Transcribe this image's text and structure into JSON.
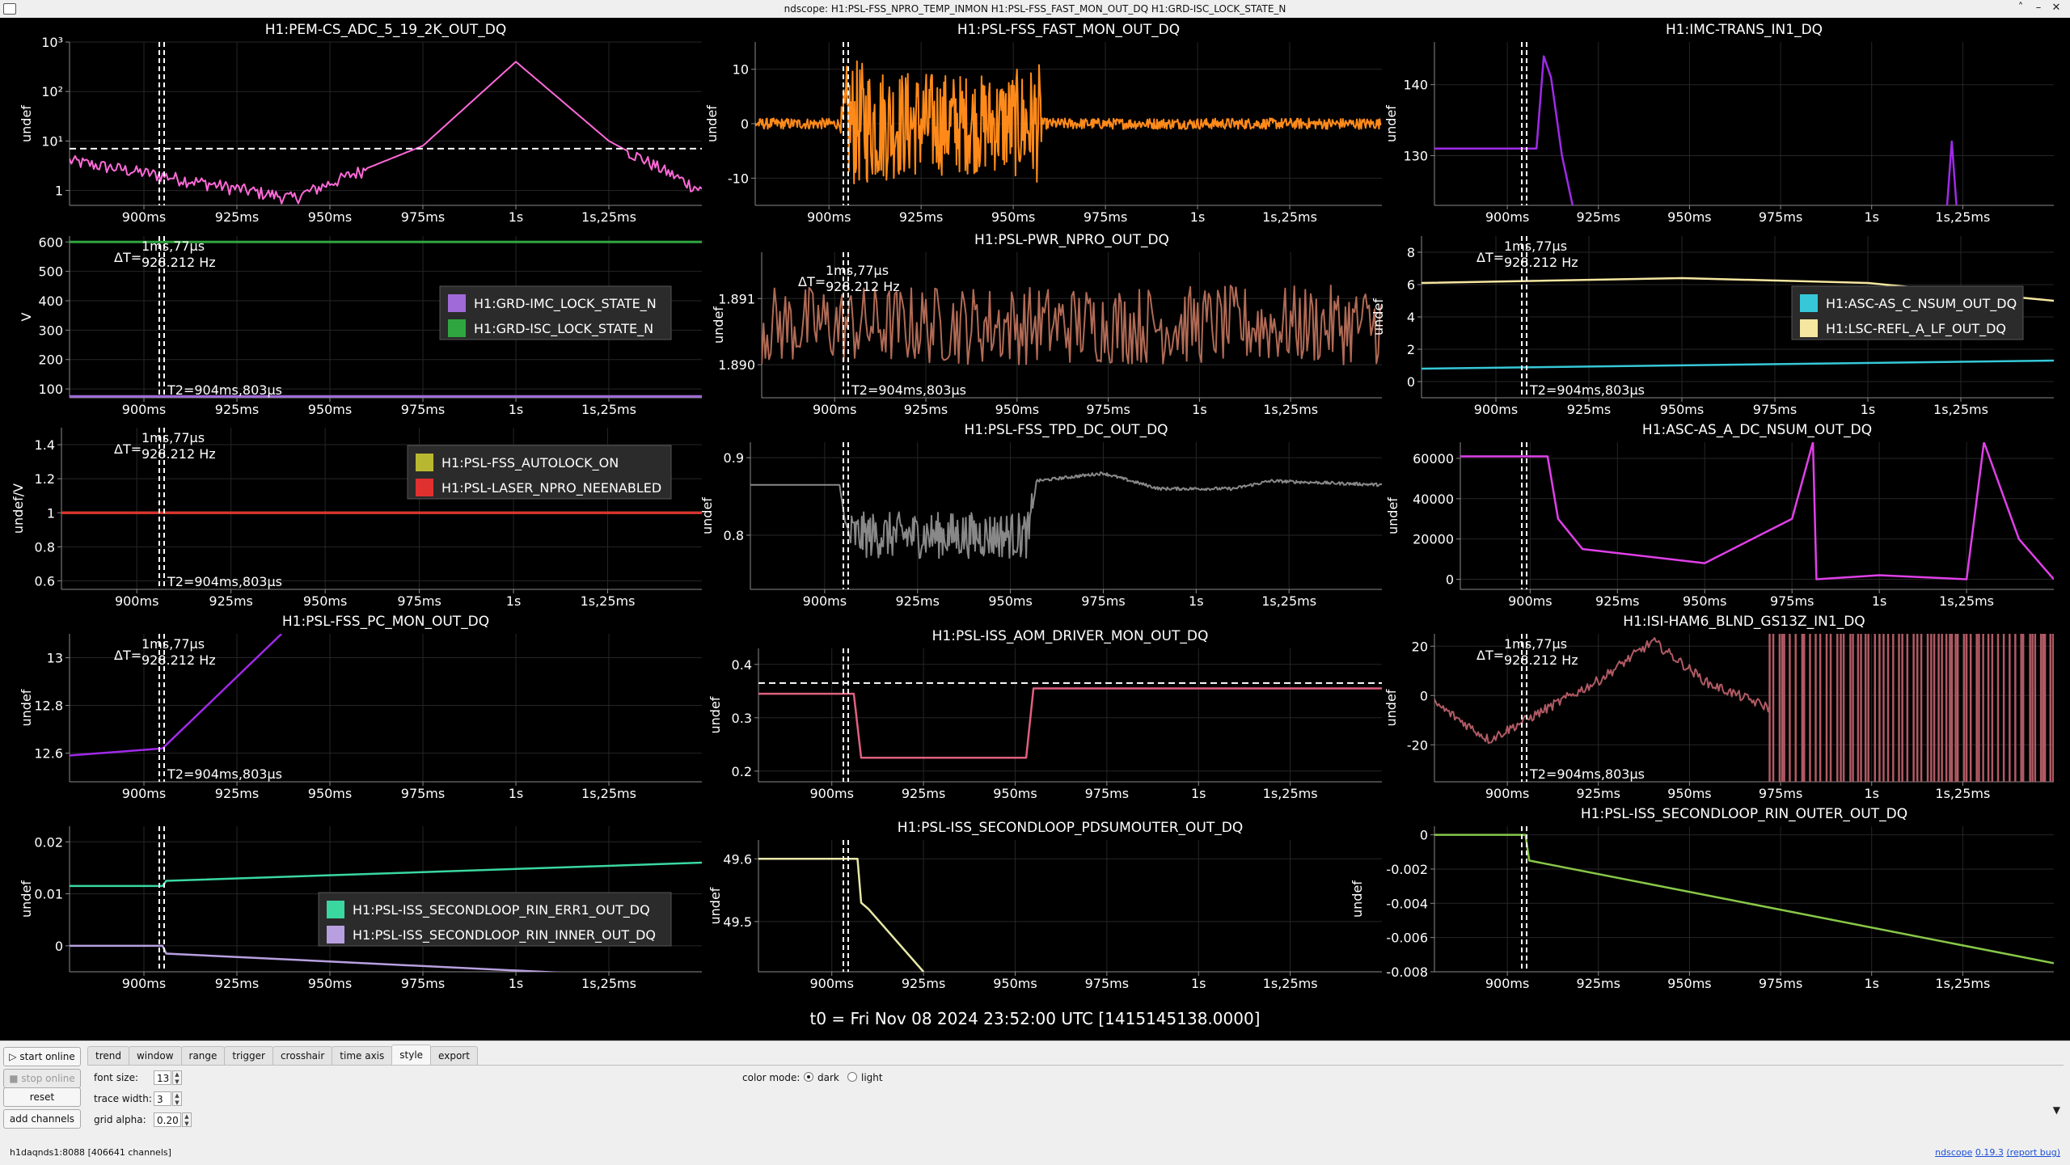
{
  "window": {
    "title": "ndscope: H1:PSL-FSS_NPRO_TEMP_INMON H1:PSL-FSS_FAST_MON_OUT_DQ H1:GRD-ISC_LOCK_STATE_N",
    "controls": [
      "˄",
      "–",
      "✕"
    ]
  },
  "colors": {
    "grid": "#262626",
    "axis": "#8a8a8a",
    "text": "#ffffff",
    "cursor": "#ffffff",
    "magenta": "#ff69d8",
    "orange": "#ff8a1a",
    "violet": "#a02ae8",
    "purple": "#a06ad8",
    "green": "#2fa63f",
    "brown": "#b06a55",
    "yellow": "#f5e6a0",
    "cyan": "#36c8d8",
    "gray": "#888888",
    "fuchsia": "#e040e8",
    "yellowgreen": "#b8b830",
    "red": "#e03030",
    "pinkred": "#e06080",
    "rose": "#b05a64",
    "aqua": "#3ad8a0",
    "lavender": "#b8a0e0",
    "paleyellow": "#e8e8a8",
    "lime": "#88c848"
  },
  "xaxis_ticks": [
    "900ms",
    "925ms",
    "950ms",
    "975ms",
    "1s",
    "1s,25ms"
  ],
  "cursor_labels": {
    "delta_t": "ΔT=",
    "delta_value": "1ms,77µs",
    "freq": "928.212 Hz",
    "t2": "T2=904ms,803µs"
  },
  "t0": "t0 = Fri Nov 08 2024 23:52:00 UTC [1415145138.0000]",
  "plots": [
    {
      "title": "H1:PEM-CS_ADC_5_19_2K_OUT_DQ",
      "ylabel": "undef",
      "yticks": [
        "10³",
        "10²",
        "10¹",
        "1"
      ],
      "legend": []
    },
    {
      "title": "H1:PSL-FSS_FAST_MON_OUT_DQ",
      "ylabel": "undef",
      "yticks": [
        "10",
        "0",
        "-10"
      ],
      "legend": []
    },
    {
      "title": "H1:IMC-TRANS_IN1_DQ",
      "ylabel": "undef",
      "yticks": [
        "140",
        "130"
      ],
      "legend": []
    },
    {
      "title": "",
      "ylabel": "V",
      "yticks": [
        "600",
        "500",
        "400",
        "300",
        "200",
        "100"
      ],
      "legend": [
        "H1:GRD-IMC_LOCK_STATE_N",
        "H1:GRD-ISC_LOCK_STATE_N"
      ]
    },
    {
      "title": "H1:PSL-PWR_NPRO_OUT_DQ",
      "ylabel": "undef",
      "yticks": [
        "1.891",
        "1.890"
      ],
      "legend": []
    },
    {
      "title": "",
      "ylabel": "undef",
      "yticks": [
        "8",
        "6",
        "4",
        "2",
        "0"
      ],
      "legend": [
        "H1:ASC-AS_C_NSUM_OUT_DQ",
        "H1:LSC-REFL_A_LF_OUT_DQ"
      ]
    },
    {
      "title": "",
      "ylabel": "undef/V",
      "yticks": [
        "1.4",
        "1.2",
        "1",
        "0.8",
        "0.6"
      ],
      "legend": [
        "H1:PSL-FSS_AUTOLOCK_ON",
        "H1:PSL-LASER_NPRO_NEENABLED"
      ]
    },
    {
      "title": "H1:PSL-FSS_TPD_DC_OUT_DQ",
      "ylabel": "undef",
      "yticks": [
        "0.9",
        "0.8"
      ],
      "legend": []
    },
    {
      "title": "H1:ASC-AS_A_DC_NSUM_OUT_DQ",
      "ylabel": "undef",
      "yticks": [
        "60000",
        "40000",
        "20000",
        "0"
      ],
      "legend": []
    },
    {
      "title": "H1:PSL-FSS_PC_MON_OUT_DQ",
      "ylabel": "undef",
      "yticks": [
        "13",
        "12.8",
        "12.6"
      ],
      "legend": []
    },
    {
      "title": "H1:PSL-ISS_AOM_DRIVER_MON_OUT_DQ",
      "ylabel": "undef",
      "yticks": [
        "0.4",
        "0.3",
        "0.2"
      ],
      "legend": []
    },
    {
      "title": "H1:ISI-HAM6_BLND_GS13Z_IN1_DQ",
      "ylabel": "undef",
      "yticks": [
        "20",
        "0",
        "-20"
      ],
      "legend": []
    },
    {
      "title": "",
      "ylabel": "undef",
      "yticks": [
        "0.02",
        "0.01",
        "0"
      ],
      "legend": [
        "H1:PSL-ISS_SECONDLOOP_RIN_ERR1_OUT_DQ",
        "H1:PSL-ISS_SECONDLOOP_RIN_INNER_OUT_DQ"
      ]
    },
    {
      "title": "H1:PSL-ISS_SECONDLOOP_PDSUMOUTER_OUT_DQ",
      "ylabel": "undef",
      "yticks": [
        "49.6",
        "49.5"
      ],
      "legend": []
    },
    {
      "title": "H1:PSL-ISS_SECONDLOOP_RIN_OUTER_OUT_DQ",
      "ylabel": "undef",
      "yticks": [
        "0",
        "-0.002",
        "-0.004",
        "-0.006",
        "-0.008"
      ],
      "legend": []
    }
  ],
  "side_buttons": {
    "start_online": "start online",
    "stop_online": "stop online",
    "reset": "reset",
    "add_channels": "add channels"
  },
  "tabs": [
    "trend",
    "window",
    "range",
    "trigger",
    "crosshair",
    "time axis",
    "style",
    "export"
  ],
  "active_tab": "style",
  "style_tab": {
    "font_size_label": "font size:",
    "font_size": "13",
    "trace_width_label": "trace width:",
    "trace_width": "3",
    "grid_alpha_label": "grid alpha:",
    "grid_alpha": "0.20",
    "color_mode_label": "color mode:",
    "dark_label": "dark",
    "light_label": "light",
    "color_mode": "dark"
  },
  "status": {
    "server": "h1daqnds1:8088",
    "channels": "[406641 channels]",
    "app_name": "ndscope",
    "version": "0.19.3",
    "report": "(report bug)"
  },
  "chart_data": [
    {
      "type": "line",
      "title": "H1:PEM-CS_ADC_5_19_2K_OUT_DQ",
      "ylabel": "undef",
      "yscale": "log",
      "x_range_ms": [
        880,
        1050
      ],
      "series": [
        {
          "color": "magenta",
          "x": [
            880,
            905,
            940,
            975,
            1000,
            1025,
            1050
          ],
          "values": [
            4,
            2,
            0.7,
            8,
            400,
            10,
            1
          ]
        }
      ],
      "hline": 7,
      "cursors_ms": [
        904.8,
        905.9
      ]
    },
    {
      "type": "line",
      "title": "H1:PSL-FSS_FAST_MON_OUT_DQ",
      "ylabel": "undef",
      "yrange": [
        -15,
        15
      ],
      "series": [
        {
          "color": "orange",
          "note_amplitude": [
            [
              880,
              1
            ],
            [
              903,
              1
            ],
            [
              905,
              12
            ],
            [
              920,
              10
            ],
            [
              945,
              9
            ],
            [
              957,
              11
            ],
            [
              958,
              1
            ],
            [
              1050,
              1
            ]
          ]
        }
      ],
      "cursors_ms": [
        904.8,
        905.9
      ]
    },
    {
      "type": "line",
      "title": "H1:IMC-TRANS_IN1_DQ",
      "ylabel": "undef",
      "yrange": [
        123,
        146
      ],
      "series": [
        {
          "color": "violet",
          "x": [
            880,
            908,
            910,
            912,
            915,
            920,
            1020,
            1022,
            1024
          ],
          "values": [
            131,
            131,
            144,
            141,
            130,
            118,
            118,
            132,
            118
          ]
        }
      ],
      "cursors_ms": [
        904.8,
        905.9
      ]
    },
    {
      "type": "line",
      "ylabel": "V",
      "yrange": [
        70,
        620
      ],
      "series": [
        {
          "name": "H1:GRD-IMC_LOCK_STATE_N",
          "color": "purple",
          "x": [
            880,
            1050
          ],
          "values": [
            75,
            75
          ]
        },
        {
          "name": "H1:GRD-ISC_LOCK_STATE_N",
          "color": "green",
          "x": [
            880,
            1050
          ],
          "values": [
            600,
            600
          ]
        }
      ],
      "cursors_ms": [
        904.8,
        905.9
      ]
    },
    {
      "type": "line",
      "title": "H1:PSL-PWR_NPRO_OUT_DQ",
      "ylabel": "undef",
      "yrange": [
        1.8895,
        1.8917
      ],
      "series": [
        {
          "color": "brown",
          "mean": 1.8906,
          "noise": 0.0006
        }
      ],
      "cursors_ms": [
        904.8,
        905.9
      ]
    },
    {
      "type": "line",
      "ylabel": "undef",
      "yrange": [
        -1,
        9
      ],
      "series": [
        {
          "name": "H1:ASC-AS_C_NSUM_OUT_DQ",
          "color": "cyan",
          "x": [
            880,
            1050
          ],
          "values": [
            0.8,
            1.3
          ]
        },
        {
          "name": "H1:LSC-REFL_A_LF_OUT_DQ",
          "color": "yellow",
          "x": [
            880,
            950,
            1000,
            1050
          ],
          "values": [
            6.1,
            6.4,
            6.1,
            5.0
          ]
        }
      ],
      "cursors_ms": [
        904.8,
        905.9
      ]
    },
    {
      "type": "line",
      "ylabel": "undef/V",
      "yrange": [
        0.55,
        1.5
      ],
      "series": [
        {
          "name": "H1:PSL-FSS_AUTOLOCK_ON",
          "color": "yellowgreen",
          "x": [
            880,
            1050
          ],
          "values": [
            1,
            1
          ]
        },
        {
          "name": "H1:PSL-LASER_NPRO_NEENABLED",
          "color": "red",
          "x": [
            880,
            1050
          ],
          "values": [
            1,
            1
          ]
        }
      ],
      "cursors_ms": [
        904.8,
        905.9
      ]
    },
    {
      "type": "line",
      "title": "H1:PSL-FSS_TPD_DC_OUT_DQ",
      "ylabel": "undef",
      "yrange": [
        0.73,
        0.92
      ],
      "series": [
        {
          "color": "gray",
          "x": [
            880,
            904,
            906,
            955,
            957,
            975,
            990,
            1010,
            1020,
            1050
          ],
          "values": [
            0.865,
            0.865,
            0.8,
            0.8,
            0.87,
            0.88,
            0.86,
            0.86,
            0.87,
            0.865
          ]
        }
      ],
      "cursors_ms": [
        904.8,
        905.9
      ]
    },
    {
      "type": "line",
      "title": "H1:ASC-AS_A_DC_NSUM_OUT_DQ",
      "ylabel": "undef",
      "yrange": [
        -5000,
        68000
      ],
      "series": [
        {
          "color": "fuchsia",
          "x": [
            880,
            905,
            908,
            915,
            950,
            975,
            981,
            982,
            1000,
            1025,
            1030,
            1040,
            1050
          ],
          "values": [
            61000,
            61000,
            30000,
            15000,
            8000,
            30000,
            68000,
            0,
            2000,
            0,
            68000,
            20000,
            0
          ]
        }
      ],
      "cursors_ms": [
        904.8,
        905.9
      ]
    },
    {
      "type": "line",
      "title": "H1:PSL-FSS_PC_MON_OUT_DQ",
      "ylabel": "undef",
      "yrange": [
        12.48,
        13.1
      ],
      "series": [
        {
          "color": "violet",
          "x": [
            880,
            905,
            937
          ],
          "values": [
            12.59,
            12.62,
            13.1
          ]
        }
      ],
      "cursors_ms": [
        904.8,
        905.9
      ]
    },
    {
      "type": "line",
      "title": "H1:PSL-ISS_AOM_DRIVER_MON_OUT_DQ",
      "ylabel": "undef",
      "yrange": [
        0.18,
        0.43
      ],
      "series": [
        {
          "color": "pinkred",
          "x": [
            880,
            906,
            908,
            953,
            955,
            1050
          ],
          "values": [
            0.345,
            0.345,
            0.225,
            0.225,
            0.355,
            0.355
          ]
        }
      ],
      "hline": 0.365,
      "cursors_ms": [
        904.8,
        905.9
      ]
    },
    {
      "type": "line",
      "title": "H1:ISI-HAM6_BLND_GS13Z_IN1_DQ",
      "ylabel": "undef",
      "yrange": [
        -35,
        25
      ],
      "series": [
        {
          "color": "rose",
          "x": [
            880,
            895,
            905,
            925,
            940,
            955,
            972,
            980
          ],
          "values": [
            -3,
            -18,
            -10,
            6,
            22,
            5,
            -5,
            -5
          ]
        }
      ],
      "cursors_ms": [
        904.8,
        905.9
      ]
    },
    {
      "type": "line",
      "ylabel": "undef",
      "yrange": [
        -0.005,
        0.023
      ],
      "series": [
        {
          "name": "H1:PSL-ISS_SECONDLOOP_RIN_ERR1_OUT_DQ",
          "color": "aqua",
          "x": [
            880,
            905,
            906,
            1050
          ],
          "values": [
            0.0115,
            0.0115,
            0.0125,
            0.016
          ]
        },
        {
          "name": "H1:PSL-ISS_SECONDLOOP_RIN_INNER_OUT_DQ",
          "color": "lavender",
          "x": [
            880,
            905,
            906,
            1050
          ],
          "values": [
            0,
            0,
            -0.0015,
            -0.0065
          ]
        }
      ],
      "cursors_ms": [
        904.8,
        905.9
      ]
    },
    {
      "type": "line",
      "title": "H1:PSL-ISS_SECONDLOOP_PDSUMOUTER_OUT_DQ",
      "ylabel": "undef",
      "yrange": [
        49.42,
        49.63
      ],
      "series": [
        {
          "color": "paleyellow",
          "x": [
            880,
            907,
            908,
            910,
            925
          ],
          "values": [
            49.6,
            49.6,
            49.53,
            49.52,
            49.42
          ]
        }
      ],
      "cursors_ms": [
        904.8,
        905.9
      ]
    },
    {
      "type": "line",
      "title": "H1:PSL-ISS_SECONDLOOP_RIN_OUTER_OUT_DQ",
      "ylabel": "undef",
      "yrange": [
        -0.008,
        0.0005
      ],
      "series": [
        {
          "color": "lime",
          "x": [
            880,
            905,
            906,
            1050
          ],
          "values": [
            0,
            0,
            -0.0015,
            -0.0075
          ]
        }
      ],
      "cursors_ms": [
        904.8,
        905.9
      ]
    }
  ]
}
